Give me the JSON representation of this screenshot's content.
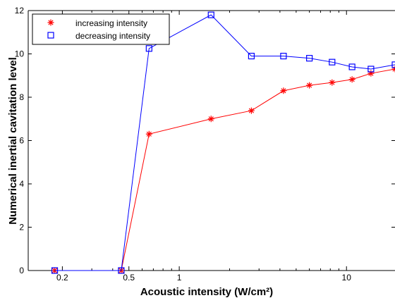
{
  "chart_data": {
    "type": "line",
    "xlabel": "Acoustic intensity (W/cm²)",
    "ylabel": "Numerical inertial cavitation level",
    "xscale": "log",
    "xlim": [
      0.125,
      19.5
    ],
    "ylim": [
      0,
      12
    ],
    "x_ticks": [
      0.2,
      0.5,
      1,
      10
    ],
    "x_tick_labels": [
      "0.2",
      "0.5",
      "1",
      "10"
    ],
    "y_ticks": [
      0,
      2,
      4,
      6,
      8,
      10,
      12
    ],
    "y_tick_labels": [
      "0",
      "2",
      "4",
      "6",
      "8",
      "10",
      "12"
    ],
    "grid": false,
    "legend_position": "top-left",
    "series": [
      {
        "name": "increasing intensity",
        "color": "#ff0000",
        "marker": "asterisk",
        "x": [
          0.18,
          0.45,
          0.66,
          1.55,
          2.7,
          4.2,
          6.0,
          8.2,
          10.8,
          14.0,
          19.5
        ],
        "y": [
          0,
          0,
          6.3,
          7.0,
          7.38,
          8.3,
          8.55,
          8.68,
          8.82,
          9.1,
          9.3
        ]
      },
      {
        "name": "decreasing intensity",
        "color": "#0000ff",
        "marker": "square",
        "x": [
          0.18,
          0.45,
          0.66,
          1.55,
          2.7,
          4.2,
          6.0,
          8.2,
          10.8,
          14.0,
          19.5
        ],
        "y": [
          0,
          0,
          10.25,
          11.8,
          9.9,
          9.9,
          9.8,
          9.62,
          9.4,
          9.3,
          9.5
        ]
      }
    ]
  }
}
